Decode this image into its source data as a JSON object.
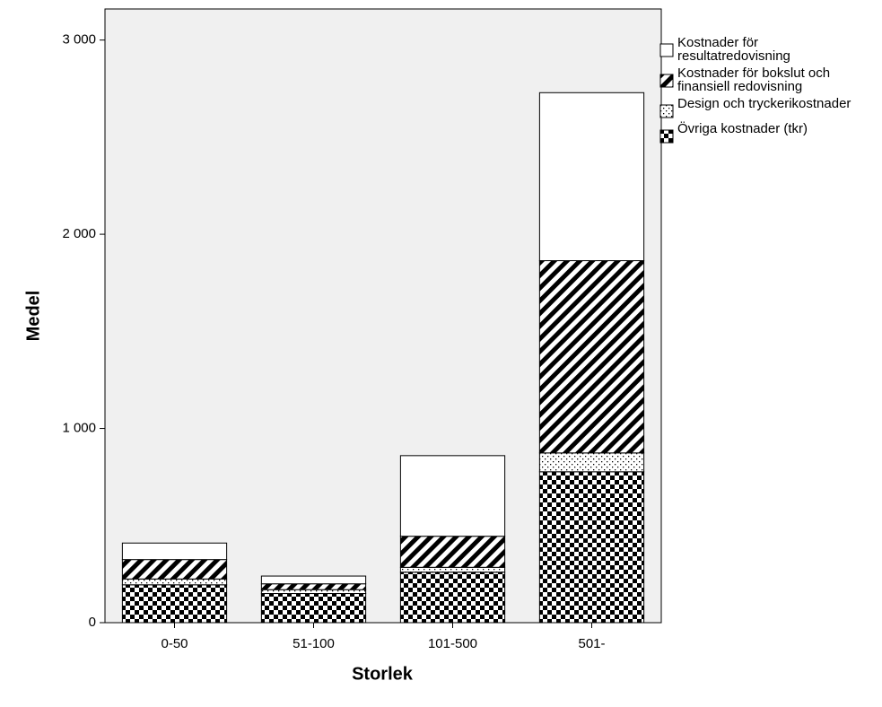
{
  "chart_data": {
    "type": "stacked-bar",
    "x_label": "Storlek",
    "y_label": "Medel",
    "categories": [
      "0-50",
      "51-100",
      "101-500",
      "501-"
    ],
    "series": [
      {
        "name": "Kostnader för resultatredovisning",
        "color": "#ffffff",
        "pattern": "none",
        "values": [
          85,
          40,
          415,
          865
        ]
      },
      {
        "name": "Kostnader för bokslut och finansiell redovisning",
        "color": "#000000",
        "pattern": "diagonal",
        "values": [
          100,
          30,
          160,
          990
        ]
      },
      {
        "name": "Design och tryckerikostnader",
        "color": "#000000",
        "pattern": "dots",
        "values": [
          30,
          20,
          25,
          97
        ]
      },
      {
        "name": "Övriga kostnader (tkr)",
        "color": "#000000",
        "pattern": "checker",
        "values": [
          195,
          150,
          260,
          777
        ]
      }
    ],
    "ylim": [
      0,
      3160
    ],
    "yticks": [
      0,
      {
        "value": 1000,
        "label": "1 000"
      },
      {
        "value": 2000,
        "label": "2 000"
      },
      {
        "value": 3000,
        "label": "3 000"
      }
    ],
    "plot_background": "#f0f0f0"
  }
}
